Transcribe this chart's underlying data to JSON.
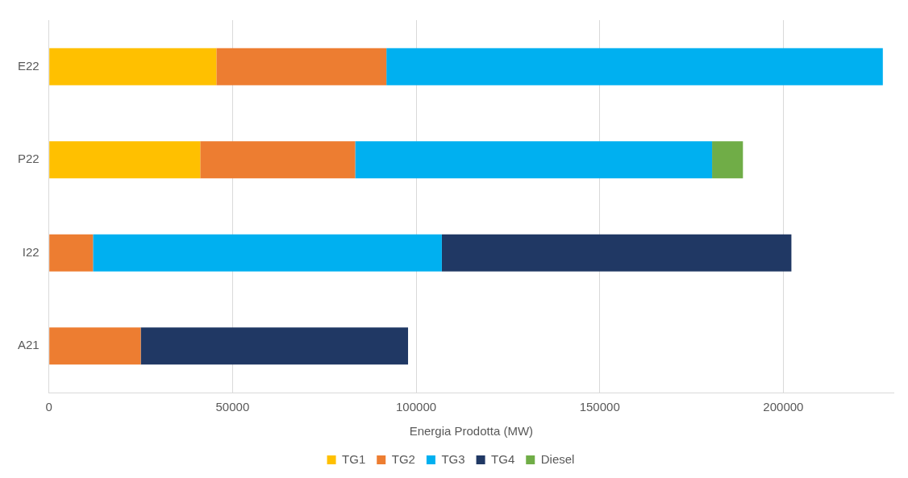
{
  "chart_data": {
    "type": "bar",
    "orientation": "horizontal",
    "stacked": true,
    "xlabel": "Energia Prodotta (MW)",
    "categories": [
      "E22",
      "P22",
      "I22",
      "A21"
    ],
    "series": [
      {
        "name": "TG1",
        "color": "#ffc000",
        "values": [
          45600,
          41200,
          null,
          null
        ]
      },
      {
        "name": "TG2",
        "color": "#ed7d31",
        "values": [
          46300,
          42200,
          12000,
          25000
        ]
      },
      {
        "name": "TG3",
        "color": "#00b0f0",
        "values": [
          135200,
          97200,
          95000,
          null
        ]
      },
      {
        "name": "TG4",
        "color": "#203864",
        "values": [
          null,
          null,
          95200,
          72800
        ]
      },
      {
        "name": "Diesel",
        "color": "#70ad47",
        "values": [
          null,
          8400,
          null,
          null
        ]
      }
    ],
    "xlim": [
      0,
      230000
    ],
    "xticks": [
      0,
      50000,
      100000,
      150000,
      200000
    ],
    "grid": "x",
    "legend": "bottom"
  }
}
